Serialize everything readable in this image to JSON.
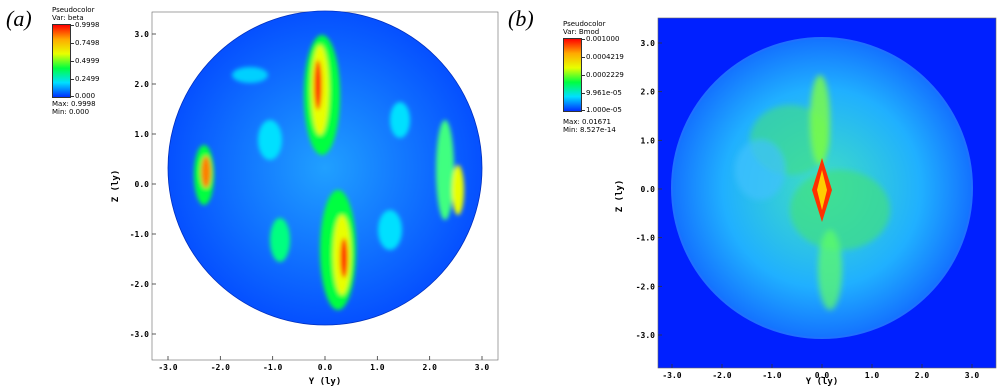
{
  "panels": [
    {
      "letter": "(a)",
      "legend": {
        "plot_type": "Pseudocolor",
        "var": "Var: beta",
        "ticks": [
          "0.9998",
          "0.7498",
          "0.4999",
          "0.2499",
          "0.000"
        ],
        "max": "Max:  0.9998",
        "min": "Min:  0.000"
      },
      "axes": {
        "xlabel": "Y (ly)",
        "ylabel": "Z (ly)",
        "xticks": [
          "-3.0",
          "-2.0",
          "-1.0",
          "0.0",
          "1.0",
          "2.0",
          "3.0"
        ],
        "yticks": [
          "3.0",
          "2.0",
          "1.0",
          "0.0",
          "-1.0",
          "-2.0",
          "-3.0"
        ]
      },
      "background_color": "#ffffff"
    },
    {
      "letter": "(b)",
      "legend": {
        "plot_type": "Pseudocolor",
        "var": "Var: Bmod",
        "ticks": [
          "0.001000",
          "0.0004219",
          "0.0002229",
          "9.961e-05",
          "1.000e-05"
        ],
        "max": "Max:  0.01671",
        "min": "Min:  8.527e-14"
      },
      "axes": {
        "xlabel": "Y (ly)",
        "ylabel": "Z (ly)",
        "xticks": [
          "-3.0",
          "-2.0",
          "-1.0",
          "0.0",
          "1.0",
          "2.0",
          "3.0"
        ],
        "yticks": [
          "3.0",
          "2.0",
          "1.0",
          "0.0",
          "-1.0",
          "-2.0",
          "-3.0"
        ]
      },
      "background_color": "#0020ff"
    }
  ],
  "colormap": [
    "#ff0000",
    "#ffaa00",
    "#e8ff00",
    "#00ff40",
    "#00e0ff",
    "#0040ff"
  ]
}
